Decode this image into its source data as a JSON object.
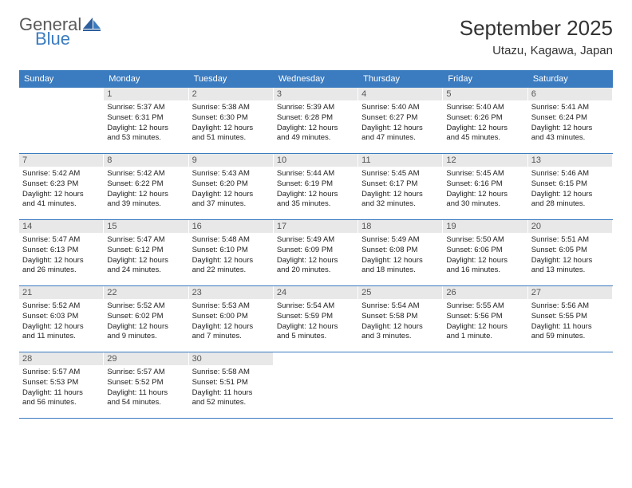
{
  "logo": {
    "general": "General",
    "blue": "Blue"
  },
  "title": "September 2025",
  "location": "Utazu, Kagawa, Japan",
  "colors": {
    "header_bg": "#3b7bbf",
    "header_text": "#ffffff",
    "daynum_bg": "#e8e8e8",
    "daynum_text": "#555555",
    "border": "#3b7bbf",
    "body_text": "#222222",
    "logo_gray": "#5a5a5a",
    "logo_blue": "#3b7bbf"
  },
  "weekdays": [
    "Sunday",
    "Monday",
    "Tuesday",
    "Wednesday",
    "Thursday",
    "Friday",
    "Saturday"
  ],
  "weeks": [
    [
      null,
      {
        "n": "1",
        "sr": "Sunrise: 5:37 AM",
        "ss": "Sunset: 6:31 PM",
        "d1": "Daylight: 12 hours",
        "d2": "and 53 minutes."
      },
      {
        "n": "2",
        "sr": "Sunrise: 5:38 AM",
        "ss": "Sunset: 6:30 PM",
        "d1": "Daylight: 12 hours",
        "d2": "and 51 minutes."
      },
      {
        "n": "3",
        "sr": "Sunrise: 5:39 AM",
        "ss": "Sunset: 6:28 PM",
        "d1": "Daylight: 12 hours",
        "d2": "and 49 minutes."
      },
      {
        "n": "4",
        "sr": "Sunrise: 5:40 AM",
        "ss": "Sunset: 6:27 PM",
        "d1": "Daylight: 12 hours",
        "d2": "and 47 minutes."
      },
      {
        "n": "5",
        "sr": "Sunrise: 5:40 AM",
        "ss": "Sunset: 6:26 PM",
        "d1": "Daylight: 12 hours",
        "d2": "and 45 minutes."
      },
      {
        "n": "6",
        "sr": "Sunrise: 5:41 AM",
        "ss": "Sunset: 6:24 PM",
        "d1": "Daylight: 12 hours",
        "d2": "and 43 minutes."
      }
    ],
    [
      {
        "n": "7",
        "sr": "Sunrise: 5:42 AM",
        "ss": "Sunset: 6:23 PM",
        "d1": "Daylight: 12 hours",
        "d2": "and 41 minutes."
      },
      {
        "n": "8",
        "sr": "Sunrise: 5:42 AM",
        "ss": "Sunset: 6:22 PM",
        "d1": "Daylight: 12 hours",
        "d2": "and 39 minutes."
      },
      {
        "n": "9",
        "sr": "Sunrise: 5:43 AM",
        "ss": "Sunset: 6:20 PM",
        "d1": "Daylight: 12 hours",
        "d2": "and 37 minutes."
      },
      {
        "n": "10",
        "sr": "Sunrise: 5:44 AM",
        "ss": "Sunset: 6:19 PM",
        "d1": "Daylight: 12 hours",
        "d2": "and 35 minutes."
      },
      {
        "n": "11",
        "sr": "Sunrise: 5:45 AM",
        "ss": "Sunset: 6:17 PM",
        "d1": "Daylight: 12 hours",
        "d2": "and 32 minutes."
      },
      {
        "n": "12",
        "sr": "Sunrise: 5:45 AM",
        "ss": "Sunset: 6:16 PM",
        "d1": "Daylight: 12 hours",
        "d2": "and 30 minutes."
      },
      {
        "n": "13",
        "sr": "Sunrise: 5:46 AM",
        "ss": "Sunset: 6:15 PM",
        "d1": "Daylight: 12 hours",
        "d2": "and 28 minutes."
      }
    ],
    [
      {
        "n": "14",
        "sr": "Sunrise: 5:47 AM",
        "ss": "Sunset: 6:13 PM",
        "d1": "Daylight: 12 hours",
        "d2": "and 26 minutes."
      },
      {
        "n": "15",
        "sr": "Sunrise: 5:47 AM",
        "ss": "Sunset: 6:12 PM",
        "d1": "Daylight: 12 hours",
        "d2": "and 24 minutes."
      },
      {
        "n": "16",
        "sr": "Sunrise: 5:48 AM",
        "ss": "Sunset: 6:10 PM",
        "d1": "Daylight: 12 hours",
        "d2": "and 22 minutes."
      },
      {
        "n": "17",
        "sr": "Sunrise: 5:49 AM",
        "ss": "Sunset: 6:09 PM",
        "d1": "Daylight: 12 hours",
        "d2": "and 20 minutes."
      },
      {
        "n": "18",
        "sr": "Sunrise: 5:49 AM",
        "ss": "Sunset: 6:08 PM",
        "d1": "Daylight: 12 hours",
        "d2": "and 18 minutes."
      },
      {
        "n": "19",
        "sr": "Sunrise: 5:50 AM",
        "ss": "Sunset: 6:06 PM",
        "d1": "Daylight: 12 hours",
        "d2": "and 16 minutes."
      },
      {
        "n": "20",
        "sr": "Sunrise: 5:51 AM",
        "ss": "Sunset: 6:05 PM",
        "d1": "Daylight: 12 hours",
        "d2": "and 13 minutes."
      }
    ],
    [
      {
        "n": "21",
        "sr": "Sunrise: 5:52 AM",
        "ss": "Sunset: 6:03 PM",
        "d1": "Daylight: 12 hours",
        "d2": "and 11 minutes."
      },
      {
        "n": "22",
        "sr": "Sunrise: 5:52 AM",
        "ss": "Sunset: 6:02 PM",
        "d1": "Daylight: 12 hours",
        "d2": "and 9 minutes."
      },
      {
        "n": "23",
        "sr": "Sunrise: 5:53 AM",
        "ss": "Sunset: 6:00 PM",
        "d1": "Daylight: 12 hours",
        "d2": "and 7 minutes."
      },
      {
        "n": "24",
        "sr": "Sunrise: 5:54 AM",
        "ss": "Sunset: 5:59 PM",
        "d1": "Daylight: 12 hours",
        "d2": "and 5 minutes."
      },
      {
        "n": "25",
        "sr": "Sunrise: 5:54 AM",
        "ss": "Sunset: 5:58 PM",
        "d1": "Daylight: 12 hours",
        "d2": "and 3 minutes."
      },
      {
        "n": "26",
        "sr": "Sunrise: 5:55 AM",
        "ss": "Sunset: 5:56 PM",
        "d1": "Daylight: 12 hours",
        "d2": "and 1 minute."
      },
      {
        "n": "27",
        "sr": "Sunrise: 5:56 AM",
        "ss": "Sunset: 5:55 PM",
        "d1": "Daylight: 11 hours",
        "d2": "and 59 minutes."
      }
    ],
    [
      {
        "n": "28",
        "sr": "Sunrise: 5:57 AM",
        "ss": "Sunset: 5:53 PM",
        "d1": "Daylight: 11 hours",
        "d2": "and 56 minutes."
      },
      {
        "n": "29",
        "sr": "Sunrise: 5:57 AM",
        "ss": "Sunset: 5:52 PM",
        "d1": "Daylight: 11 hours",
        "d2": "and 54 minutes."
      },
      {
        "n": "30",
        "sr": "Sunrise: 5:58 AM",
        "ss": "Sunset: 5:51 PM",
        "d1": "Daylight: 11 hours",
        "d2": "and 52 minutes."
      },
      null,
      null,
      null,
      null
    ]
  ]
}
